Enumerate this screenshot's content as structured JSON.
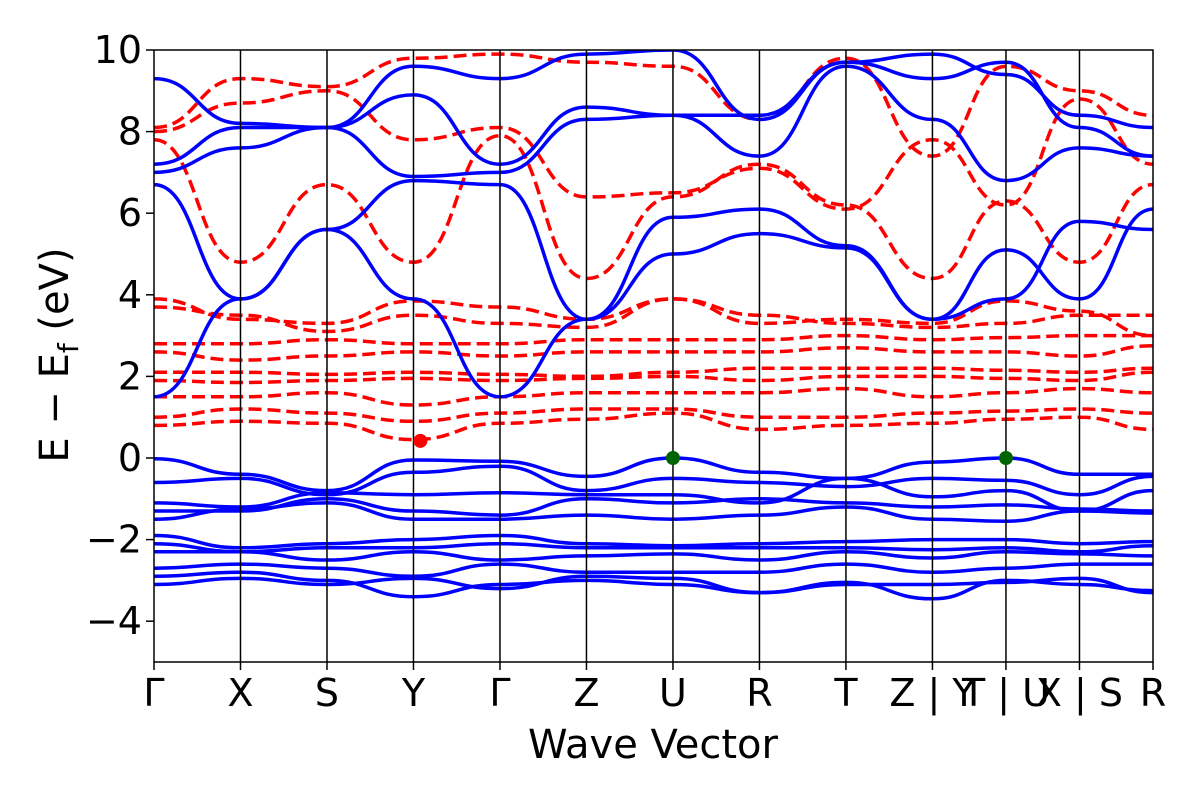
{
  "chart_data": {
    "type": "line",
    "title": "",
    "xlabel": "Wave Vector",
    "ylabel_main": "E − E",
    "ylabel_sub": "f",
    "ylabel_unit": " (eV)",
    "ylim": [
      -5,
      10
    ],
    "yticks": [
      -4,
      -2,
      0,
      2,
      4,
      6,
      8,
      10
    ],
    "ytick_labels": [
      "−4",
      "−2",
      "0",
      "2",
      "4",
      "6",
      "8",
      "10"
    ],
    "kpath_breaks": [
      0,
      1,
      2,
      3,
      4,
      5,
      6,
      7,
      8,
      9,
      9.85,
      10.7,
      11.55
    ],
    "kpath_labels": [
      "Γ",
      "X",
      "S",
      "Y",
      "Γ",
      "Z",
      "U",
      "R",
      "T",
      "Z | Y",
      "T | U",
      "X | S",
      "R"
    ],
    "grid": false,
    "colors": {
      "valence": "#0000ff",
      "conduction": "#ff0000",
      "vbm_marker": "#006400",
      "cbm_marker": "#ff0000",
      "kline": "#000000"
    },
    "valence_bands": [
      {
        "name": "",
        "values": [
          -0.02,
          -0.4,
          -0.8,
          -0.05,
          -0.08,
          -0.45,
          0.0,
          -0.35,
          -0.5,
          -0.1,
          0.0,
          -0.4,
          -0.4
        ]
      },
      {
        "name": "",
        "values": [
          -0.6,
          -0.5,
          -0.9,
          -0.35,
          -0.2,
          -0.8,
          -0.5,
          -0.6,
          -0.7,
          -0.5,
          -0.55,
          -0.9,
          -0.45
        ]
      },
      {
        "name": "",
        "values": [
          -1.1,
          -1.2,
          -0.85,
          -0.9,
          -0.85,
          -0.9,
          -0.9,
          -1.1,
          -0.5,
          -0.95,
          -0.8,
          -1.3,
          -0.8
        ]
      },
      {
        "name": "",
        "values": [
          -1.3,
          -1.3,
          -1.0,
          -1.3,
          -1.4,
          -1.0,
          -1.1,
          -1.0,
          -1.1,
          -1.2,
          -1.15,
          -1.25,
          -1.3
        ]
      },
      {
        "name": "",
        "values": [
          -1.5,
          -1.25,
          -1.1,
          -1.5,
          -1.5,
          -1.4,
          -1.5,
          -1.4,
          -1.2,
          -1.5,
          -1.55,
          -1.3,
          -1.35
        ]
      },
      {
        "name": "",
        "values": [
          -1.9,
          -2.2,
          -2.1,
          -2.0,
          -1.9,
          -2.1,
          -2.15,
          -2.1,
          -2.05,
          -2.0,
          -2.0,
          -2.1,
          -2.05
        ]
      },
      {
        "name": "",
        "values": [
          -2.1,
          -2.3,
          -2.2,
          -2.2,
          -2.1,
          -2.2,
          -2.2,
          -2.2,
          -2.2,
          -2.25,
          -2.2,
          -2.3,
          -2.15
        ]
      },
      {
        "name": "",
        "values": [
          -2.3,
          -2.3,
          -2.5,
          -2.3,
          -2.5,
          -2.4,
          -2.35,
          -2.5,
          -2.3,
          -2.45,
          -2.3,
          -2.35,
          -2.4
        ]
      },
      {
        "name": "",
        "values": [
          -2.7,
          -2.6,
          -2.7,
          -2.9,
          -2.6,
          -2.8,
          -2.8,
          -2.8,
          -2.6,
          -2.8,
          -2.7,
          -2.6,
          -2.6
        ]
      },
      {
        "name": "",
        "values": [
          -2.9,
          -2.8,
          -3.0,
          -3.4,
          -3.1,
          -3.0,
          -3.1,
          -3.3,
          -3.1,
          -3.1,
          -3.05,
          -2.95,
          -3.3
        ]
      },
      {
        "name": "",
        "values": [
          -3.1,
          -2.95,
          -3.1,
          -2.95,
          -3.2,
          -2.9,
          -2.95,
          -3.3,
          -3.05,
          -3.45,
          -3.0,
          -3.1,
          -3.25
        ]
      }
    ],
    "conduction_bands": [
      {
        "name": "",
        "values": [
          0.8,
          0.9,
          0.85,
          0.45,
          0.85,
          0.95,
          1.1,
          0.7,
          0.8,
          0.85,
          0.95,
          1.0,
          0.7
        ]
      },
      {
        "name": "",
        "values": [
          1.0,
          1.2,
          1.1,
          0.9,
          1.1,
          1.2,
          1.2,
          1.0,
          1.0,
          1.1,
          1.15,
          1.2,
          1.1
        ]
      },
      {
        "name": "",
        "values": [
          1.5,
          1.5,
          1.6,
          1.3,
          1.5,
          1.6,
          1.6,
          1.6,
          1.7,
          1.5,
          1.6,
          1.7,
          1.6
        ]
      },
      {
        "name": "",
        "values": [
          1.9,
          1.85,
          1.9,
          1.95,
          1.9,
          1.95,
          2.0,
          1.9,
          2.0,
          2.0,
          1.95,
          1.9,
          2.1
        ]
      },
      {
        "name": "",
        "values": [
          2.1,
          2.1,
          2.05,
          2.1,
          2.05,
          2.0,
          2.1,
          2.2,
          2.2,
          2.2,
          2.15,
          2.1,
          2.2
        ]
      },
      {
        "name": "",
        "values": [
          2.6,
          2.4,
          2.5,
          2.6,
          2.5,
          2.6,
          2.6,
          2.6,
          2.7,
          2.6,
          2.6,
          2.5,
          2.75
        ]
      },
      {
        "name": "",
        "values": [
          2.8,
          2.8,
          2.9,
          2.8,
          2.8,
          2.9,
          2.9,
          2.9,
          3.0,
          2.9,
          2.95,
          3.0,
          3.0
        ]
      },
      {
        "name": "",
        "values": [
          3.7,
          3.5,
          3.1,
          3.5,
          3.3,
          3.2,
          3.9,
          3.5,
          3.3,
          3.2,
          3.3,
          3.5,
          3.5
        ]
      },
      {
        "name": "",
        "values": [
          3.9,
          3.4,
          3.3,
          3.85,
          3.7,
          3.4,
          3.9,
          3.3,
          3.4,
          3.3,
          3.85,
          3.6,
          3.0
        ]
      },
      {
        "name": "",
        "values": [
          7.8,
          4.8,
          6.7,
          4.8,
          7.9,
          4.4,
          6.4,
          7.2,
          6.2,
          4.4,
          6.3,
          4.8,
          6.7
        ]
      },
      {
        "name": "",
        "values": [
          8.0,
          8.7,
          9.0,
          7.8,
          8.1,
          6.4,
          6.5,
          7.1,
          6.1,
          7.8,
          6.2,
          8.8,
          7.2
        ]
      },
      {
        "name": "",
        "values": [
          8.1,
          9.3,
          9.1,
          9.8,
          9.9,
          9.7,
          9.6,
          8.3,
          9.8,
          7.4,
          9.6,
          9.0,
          8.4
        ]
      }
    ],
    "valence_bands_extra": [
      {
        "name": "",
        "values": [
          1.5,
          3.9,
          5.6,
          3.9,
          1.5,
          3.4,
          5.0,
          5.5,
          5.15,
          3.4,
          3.9,
          5.8,
          5.6
        ]
      },
      {
        "name": "",
        "values": [
          6.7,
          3.9,
          5.6,
          6.8,
          6.7,
          3.4,
          5.9,
          6.1,
          5.2,
          3.4,
          5.1,
          3.9,
          6.1
        ]
      },
      {
        "name": "",
        "values": [
          7.0,
          7.6,
          8.1,
          6.9,
          7.0,
          8.3,
          8.4,
          7.4,
          9.6,
          8.3,
          6.8,
          7.6,
          7.4
        ]
      },
      {
        "name": "",
        "values": [
          7.2,
          8.1,
          8.1,
          8.9,
          7.2,
          8.6,
          8.4,
          8.4,
          9.7,
          9.3,
          9.7,
          8.1,
          7.4
        ]
      },
      {
        "name": "",
        "values": [
          9.3,
          8.2,
          8.1,
          9.6,
          9.3,
          9.9,
          10.0,
          8.3,
          9.7,
          9.9,
          9.4,
          8.4,
          8.1
        ]
      }
    ],
    "markers": [
      {
        "name": "CBM",
        "x": 3.08,
        "y": 0.42,
        "color": "#ff0000"
      },
      {
        "name": "VBM",
        "x": 6.0,
        "y": 0.0,
        "color": "#006400"
      },
      {
        "name": "VBM2",
        "x": 9.85,
        "y": 0.0,
        "color": "#006400"
      }
    ]
  }
}
